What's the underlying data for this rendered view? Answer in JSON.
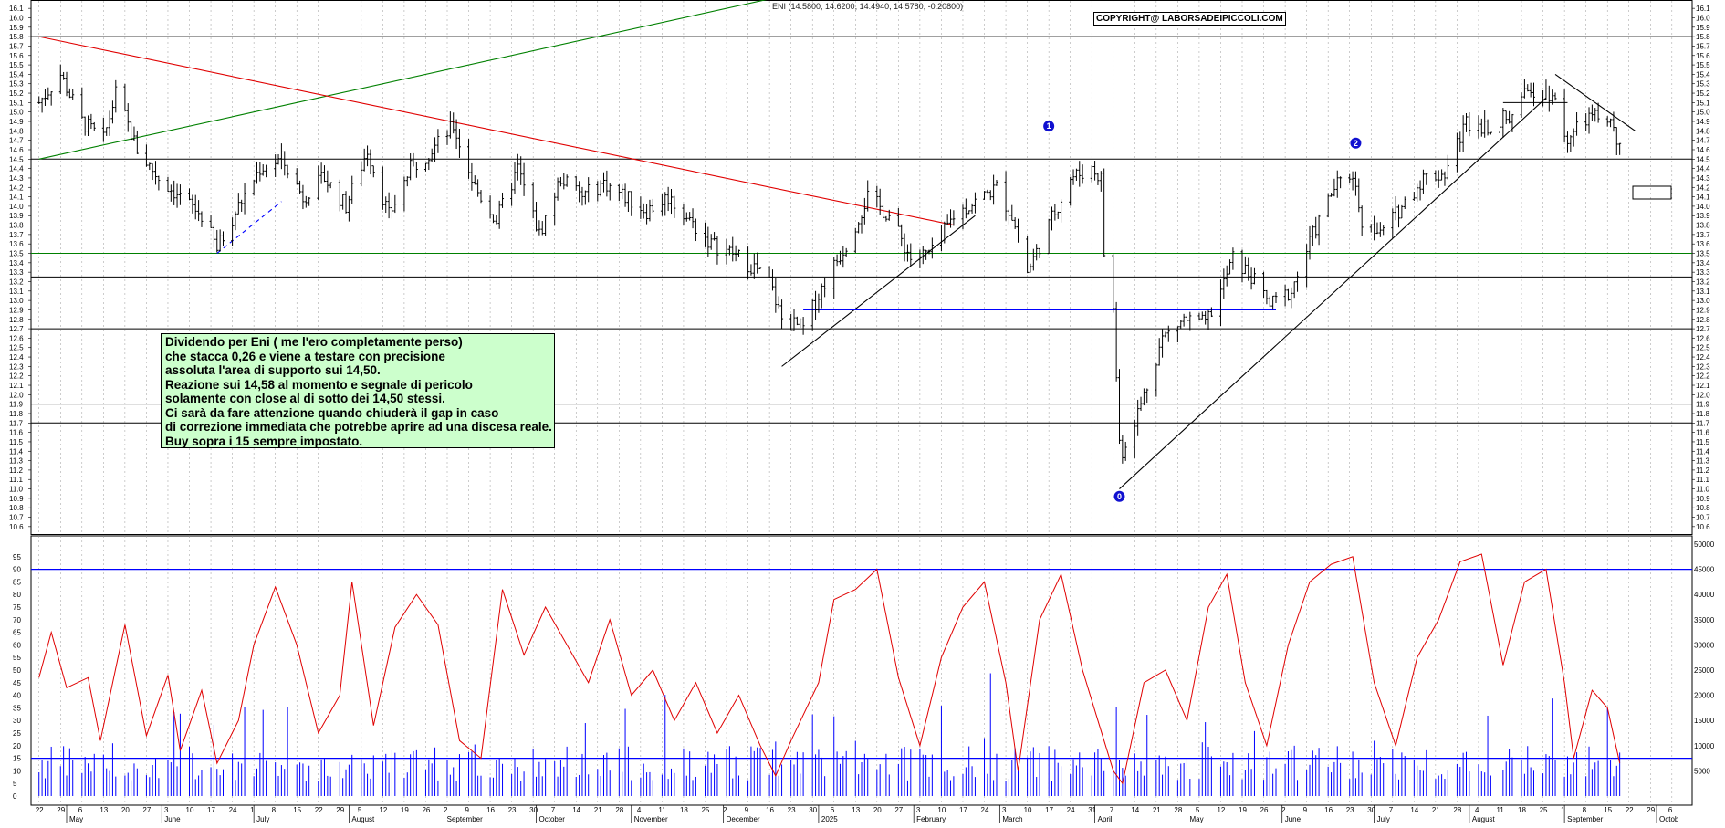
{
  "header": {
    "series_label": "ENI (14.5800, 14.6200, 14.4940, 14.5780, -0.20800)",
    "copyright": "COPYRIGHT@ LABORSADEIPICCOLI.COM"
  },
  "note": {
    "lines": [
      "Dividendo per Eni ( me l'ero completamente perso)",
      "che stacca 0,26 e viene a testare con precisione",
      "assoluta l'area di supporto sui 14,50.",
      "Reazione sui 14,58 al momento e segnale di pericolo",
      "solamente con close al di sotto dei 14,50 stessi.",
      "Ci sarà da fare attenzione quando chiuderà il gap in caso",
      "di correzione immediata che potrebbe aprire ad una discesa reale.",
      "Buy sopra i 15 sempre impostato."
    ]
  },
  "chart_data": [
    {
      "type": "candlestick",
      "title": "",
      "ylim": [
        10.6,
        16.2
      ],
      "y_ticks": [
        "16.1",
        "16.0",
        "15.9",
        "15.8",
        "15.7",
        "15.6",
        "15.5",
        "15.4",
        "15.3",
        "15.2",
        "15.1",
        "15.0",
        "14.9",
        "14.8",
        "14.7",
        "14.6",
        "14.5",
        "14.4",
        "14.3",
        "14.2",
        "14.1",
        "14.0",
        "13.9",
        "13.8",
        "13.7",
        "13.6",
        "13.5",
        "13.4",
        "13.3",
        "13.2",
        "13.1",
        "13.0",
        "12.9",
        "12.8",
        "12.7",
        "12.6",
        "12.5",
        "12.4",
        "12.3",
        "12.2",
        "12.1",
        "12.0",
        "11.9",
        "11.8",
        "11.7",
        "11.6",
        "11.5",
        "11.4",
        "11.3",
        "11.2",
        "11.1",
        "11.0",
        "10.9",
        "10.8",
        "10.7",
        "10.6"
      ],
      "close_path": [
        [
          "2024-04-22",
          15.1
        ],
        [
          "2024-04-29",
          15.4
        ],
        [
          "2024-05-06",
          14.9
        ],
        [
          "2024-05-13",
          14.7
        ],
        [
          "2024-05-17",
          15.2
        ],
        [
          "2024-05-24",
          14.6
        ],
        [
          "2024-05-31",
          14.3
        ],
        [
          "2024-06-07",
          14.1
        ],
        [
          "2024-06-14",
          13.9
        ],
        [
          "2024-06-19",
          13.55
        ],
        [
          "2024-06-26",
          14.0
        ],
        [
          "2024-07-03",
          14.4
        ],
        [
          "2024-07-10",
          14.5
        ],
        [
          "2024-07-17",
          14.1
        ],
        [
          "2024-07-24",
          14.3
        ],
        [
          "2024-07-31",
          14.0
        ],
        [
          "2024-08-07",
          14.6
        ],
        [
          "2024-08-14",
          13.9
        ],
        [
          "2024-08-21",
          14.4
        ],
        [
          "2024-08-28",
          14.6
        ],
        [
          "2024-09-04",
          14.85
        ],
        [
          "2024-09-11",
          14.2
        ],
        [
          "2024-09-18",
          13.85
        ],
        [
          "2024-09-25",
          14.4
        ],
        [
          "2024-10-02",
          13.7
        ],
        [
          "2024-10-09",
          14.3
        ],
        [
          "2024-10-16",
          14.1
        ],
        [
          "2024-10-23",
          14.25
        ],
        [
          "2024-10-30",
          14.1
        ],
        [
          "2024-11-06",
          13.95
        ],
        [
          "2024-11-13",
          14.1
        ],
        [
          "2024-11-20",
          13.85
        ],
        [
          "2024-11-27",
          13.6
        ],
        [
          "2024-12-04",
          13.5
        ],
        [
          "2024-12-11",
          13.35
        ],
        [
          "2024-12-16",
          13.2
        ],
        [
          "2024-12-20",
          12.8
        ],
        [
          "2024-12-27",
          12.7
        ],
        [
          "2025-01-03",
          13.2
        ],
        [
          "2025-01-10",
          13.6
        ],
        [
          "2025-01-17",
          14.1
        ],
        [
          "2025-01-24",
          13.9
        ],
        [
          "2025-01-31",
          13.45
        ],
        [
          "2025-02-07",
          13.5
        ],
        [
          "2025-02-14",
          13.9
        ],
        [
          "2025-02-21",
          14.05
        ],
        [
          "2025-02-28",
          14.2
        ],
        [
          "2025-03-05",
          13.9
        ],
        [
          "2025-03-10",
          13.3
        ],
        [
          "2025-03-17",
          13.8
        ],
        [
          "2025-03-24",
          14.3
        ],
        [
          "2025-03-31",
          14.4
        ],
        [
          "2025-04-03",
          14.3
        ],
        [
          "2025-04-04",
          13.5
        ],
        [
          "2025-04-07",
          12.9
        ],
        [
          "2025-04-09",
          11.5
        ],
        [
          "2025-04-10",
          11.4
        ],
        [
          "2025-04-16",
          11.9
        ],
        [
          "2025-04-23",
          12.6
        ],
        [
          "2025-04-30",
          12.8
        ],
        [
          "2025-05-07",
          12.75
        ],
        [
          "2025-05-12",
          13.1
        ],
        [
          "2025-05-16",
          13.45
        ],
        [
          "2025-05-22",
          13.25
        ],
        [
          "2025-05-28",
          12.95
        ],
        [
          "2025-06-04",
          13.1
        ],
        [
          "2025-06-11",
          13.7
        ],
        [
          "2025-06-18",
          14.2
        ],
        [
          "2025-06-24",
          14.35
        ],
        [
          "2025-06-27",
          13.85
        ],
        [
          "2025-07-03",
          13.7
        ],
        [
          "2025-07-10",
          14.0
        ],
        [
          "2025-07-17",
          14.3
        ],
        [
          "2025-07-24",
          14.35
        ],
        [
          "2025-07-31",
          14.9
        ],
        [
          "2025-08-07",
          14.85
        ],
        [
          "2025-08-14",
          14.95
        ],
        [
          "2025-08-21",
          15.25
        ],
        [
          "2025-08-28",
          15.2
        ],
        [
          "2025-09-02",
          14.7
        ],
        [
          "2025-09-09",
          14.95
        ],
        [
          "2025-09-16",
          14.9
        ],
        [
          "2025-09-19",
          14.578
        ]
      ],
      "horizontal_levels": [
        {
          "y": 15.8,
          "color": "#000000"
        },
        {
          "y": 14.5,
          "color": "#000000"
        },
        {
          "y": 13.5,
          "color": "#008000"
        },
        {
          "y": 13.25,
          "color": "#000000"
        },
        {
          "y": 12.7,
          "color": "#000000"
        },
        {
          "y": 11.9,
          "color": "#000000"
        },
        {
          "y": 11.7,
          "color": "#000000"
        }
      ],
      "trendlines": [
        {
          "color": "#008000",
          "from": [
            "2024-04-22",
            14.5
          ],
          "to": [
            "2024-12-16",
            16.2
          ]
        },
        {
          "color": "#e00000",
          "from": [
            "2024-04-22",
            15.8
          ],
          "to": [
            "2025-02-14",
            13.8
          ]
        },
        {
          "color": "#000000",
          "from": [
            "2024-12-20",
            12.3
          ],
          "to": [
            "2025-02-21",
            13.9
          ]
        },
        {
          "color": "#000000",
          "from": [
            "2025-04-09",
            11.0
          ],
          "to": [
            "2025-08-26",
            15.15
          ]
        },
        {
          "color": "#0000ff",
          "from": [
            "2024-12-27",
            12.9
          ],
          "to": [
            "2025-05-30",
            12.9
          ]
        },
        {
          "color": "#0000ff",
          "from": [
            "2024-06-19",
            13.5
          ],
          "to": [
            "2024-07-10",
            14.05
          ],
          "dashed": true
        },
        {
          "color": "#000000",
          "from": [
            "2025-08-29",
            15.4
          ],
          "to": [
            "2025-09-24",
            14.8
          ]
        },
        {
          "color": "#000000",
          "from": [
            "2025-08-12",
            15.1
          ],
          "to": [
            "2025-09-02",
            15.1
          ]
        }
      ],
      "wave_labels": [
        {
          "label": "0",
          "date": "2025-04-09",
          "y": 10.92
        },
        {
          "label": "1",
          "date": "2025-03-17",
          "y": 14.85
        },
        {
          "label": "2",
          "date": "2025-06-25",
          "y": 14.67
        }
      ]
    },
    {
      "type": "line",
      "title": "",
      "ylim": [
        0,
        100
      ],
      "y_ticks": [
        "95",
        "90",
        "85",
        "80",
        "75",
        "70",
        "65",
        "60",
        "55",
        "50",
        "45",
        "40",
        "35",
        "30",
        "25",
        "20",
        "15",
        "10",
        "5",
        "0"
      ],
      "right_ticks": [
        "50000",
        "45000",
        "40000",
        "35000",
        "30000",
        "25000",
        "20000",
        "15000",
        "10000",
        "5000"
      ],
      "levels": [
        90,
        15
      ],
      "series": [
        {
          "color": "#e00000",
          "points": [
            [
              "2024-04-22",
              47
            ],
            [
              "2024-04-26",
              65
            ],
            [
              "2024-05-01",
              43
            ],
            [
              "2024-05-08",
              47
            ],
            [
              "2024-05-12",
              22
            ],
            [
              "2024-05-20",
              68
            ],
            [
              "2024-05-27",
              24
            ],
            [
              "2024-06-03",
              48
            ],
            [
              "2024-06-07",
              18
            ],
            [
              "2024-06-14",
              42
            ],
            [
              "2024-06-19",
              13
            ],
            [
              "2024-06-26",
              30
            ],
            [
              "2024-07-01",
              60
            ],
            [
              "2024-07-08",
              83
            ],
            [
              "2024-07-15",
              60
            ],
            [
              "2024-07-22",
              25
            ],
            [
              "2024-07-29",
              40
            ],
            [
              "2024-08-02",
              85
            ],
            [
              "2024-08-09",
              28
            ],
            [
              "2024-08-16",
              67
            ],
            [
              "2024-08-23",
              80
            ],
            [
              "2024-08-30",
              68
            ],
            [
              "2024-09-06",
              22
            ],
            [
              "2024-09-13",
              15
            ],
            [
              "2024-09-20",
              82
            ],
            [
              "2024-09-27",
              56
            ],
            [
              "2024-10-04",
              75
            ],
            [
              "2024-10-11",
              60
            ],
            [
              "2024-10-18",
              45
            ],
            [
              "2024-10-25",
              70
            ],
            [
              "2024-11-01",
              40
            ],
            [
              "2024-11-08",
              50
            ],
            [
              "2024-11-15",
              30
            ],
            [
              "2024-11-22",
              45
            ],
            [
              "2024-11-29",
              25
            ],
            [
              "2024-12-06",
              40
            ],
            [
              "2024-12-13",
              20
            ],
            [
              "2024-12-18",
              8
            ],
            [
              "2024-12-23",
              22
            ],
            [
              "2025-01-01",
              45
            ],
            [
              "2025-01-06",
              78
            ],
            [
              "2025-01-13",
              82
            ],
            [
              "2025-01-20",
              90
            ],
            [
              "2025-01-27",
              47
            ],
            [
              "2025-02-03",
              20
            ],
            [
              "2025-02-10",
              55
            ],
            [
              "2025-02-17",
              75
            ],
            [
              "2025-02-24",
              85
            ],
            [
              "2025-03-03",
              45
            ],
            [
              "2025-03-07",
              10
            ],
            [
              "2025-03-14",
              70
            ],
            [
              "2025-03-21",
              88
            ],
            [
              "2025-03-28",
              50
            ],
            [
              "2025-04-02",
              30
            ],
            [
              "2025-04-07",
              10
            ],
            [
              "2025-04-10",
              5
            ],
            [
              "2025-04-17",
              45
            ],
            [
              "2025-04-24",
              50
            ],
            [
              "2025-05-01",
              30
            ],
            [
              "2025-05-08",
              75
            ],
            [
              "2025-05-14",
              88
            ],
            [
              "2025-05-20",
              45
            ],
            [
              "2025-05-27",
              20
            ],
            [
              "2025-06-03",
              60
            ],
            [
              "2025-06-10",
              85
            ],
            [
              "2025-06-17",
              92
            ],
            [
              "2025-06-24",
              95
            ],
            [
              "2025-07-01",
              45
            ],
            [
              "2025-07-08",
              20
            ],
            [
              "2025-07-15",
              55
            ],
            [
              "2025-07-22",
              70
            ],
            [
              "2025-07-29",
              93
            ],
            [
              "2025-08-05",
              96
            ],
            [
              "2025-08-12",
              52
            ],
            [
              "2025-08-19",
              85
            ],
            [
              "2025-08-26",
              90
            ],
            [
              "2025-09-01",
              45
            ],
            [
              "2025-09-04",
              15
            ],
            [
              "2025-09-10",
              42
            ],
            [
              "2025-09-15",
              35
            ],
            [
              "2025-09-19",
              13
            ]
          ]
        }
      ]
    }
  ],
  "x_axis": {
    "day_ticks": [
      "22",
      "29",
      "6",
      "13",
      "20",
      "27",
      "3",
      "10",
      "17",
      "24",
      "1",
      "8",
      "15",
      "22",
      "29",
      "5",
      "12",
      "19",
      "26",
      "2",
      "9",
      "16",
      "23",
      "30",
      "7",
      "14",
      "21",
      "28",
      "4",
      "11",
      "18",
      "25",
      "2",
      "9",
      "16",
      "23",
      "30",
      "6",
      "13",
      "20",
      "27",
      "3",
      "10",
      "17",
      "24",
      "3",
      "10",
      "17",
      "24",
      "31",
      "7",
      "14",
      "21",
      "28",
      "5",
      "12",
      "19",
      "26",
      "2",
      "9",
      "16",
      "23",
      "30",
      "7",
      "14",
      "21",
      "28",
      "4",
      "11",
      "18",
      "25",
      "1",
      "8",
      "15",
      "22",
      "29",
      "6"
    ],
    "months": [
      {
        "label": "May",
        "date": "2024-05-01"
      },
      {
        "label": "June",
        "date": "2024-06-01"
      },
      {
        "label": "July",
        "date": "2024-07-01"
      },
      {
        "label": "August",
        "date": "2024-08-01"
      },
      {
        "label": "September",
        "date": "2024-09-01"
      },
      {
        "label": "October",
        "date": "2024-10-01"
      },
      {
        "label": "November",
        "date": "2024-11-01"
      },
      {
        "label": "December",
        "date": "2024-12-01"
      },
      {
        "label": "2025",
        "date": "2025-01-01"
      },
      {
        "label": "February",
        "date": "2025-02-01"
      },
      {
        "label": "March",
        "date": "2025-03-01"
      },
      {
        "label": "April",
        "date": "2025-04-01"
      },
      {
        "label": "May",
        "date": "2025-05-01"
      },
      {
        "label": "June",
        "date": "2025-06-01"
      },
      {
        "label": "July",
        "date": "2025-07-01"
      },
      {
        "label": "August",
        "date": "2025-08-01"
      },
      {
        "label": "September",
        "date": "2025-09-01"
      },
      {
        "label": "Octob",
        "date": "2025-10-01"
      }
    ]
  },
  "colors": {
    "price_bars": "#000000",
    "oscillator": "#e00000",
    "volume": "#0000ff",
    "note_bg": "#ccffcc",
    "grid": "#999999"
  }
}
